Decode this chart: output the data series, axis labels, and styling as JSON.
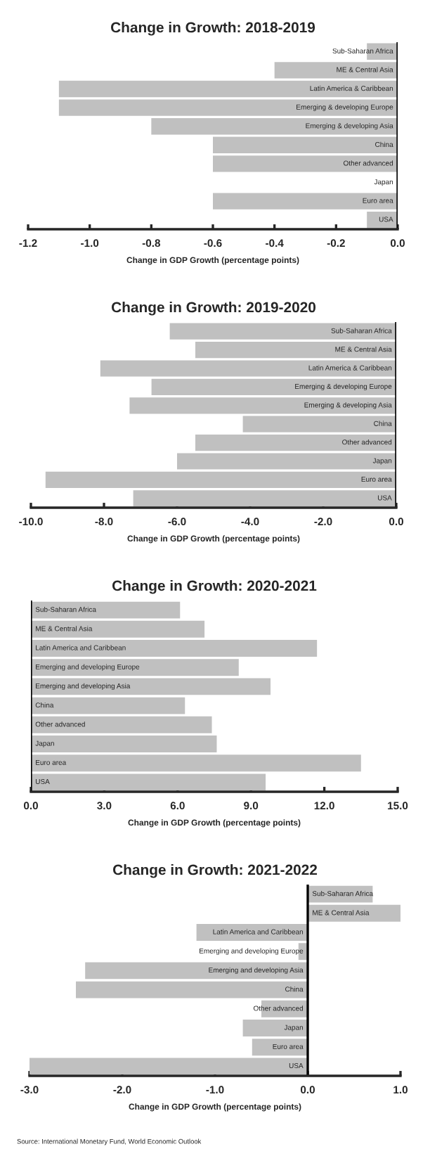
{
  "chart_data": [
    {
      "type": "bar",
      "orientation": "horizontal",
      "title": "Change in Growth: 2018-2019",
      "xlabel": "Change in GDP Growth (percentage points)",
      "categories": [
        "Sub-Saharan Africa",
        "ME & Central Asia",
        "Latin America & Caribbean",
        "Emerging & developing Europe",
        "Emerging & developing Asia",
        "China",
        "Other advanced",
        "Japan",
        "Euro area",
        "USA"
      ],
      "values": [
        -0.1,
        -0.4,
        -1.1,
        -1.1,
        -0.8,
        -0.6,
        -0.6,
        0.0,
        -0.6,
        -0.1
      ],
      "color": "#c0c0c0",
      "xlim": [
        -1.2,
        0.0
      ],
      "xticks": [
        {
          "value": -1.2,
          "label": "-1.2"
        },
        {
          "value": -1.0,
          "label": "-1.0"
        },
        {
          "value": -0.8,
          "label": "-0.8"
        },
        {
          "value": -0.6,
          "label": "-0.6"
        },
        {
          "value": -0.4,
          "label": "-0.4"
        },
        {
          "value": -0.2,
          "label": "-0.2"
        },
        {
          "value": 0.0,
          "label": "0.0"
        }
      ],
      "grid": false,
      "legend": false
    },
    {
      "type": "bar",
      "orientation": "horizontal",
      "title": "Change in Growth: 2019-2020",
      "xlabel": "Change in GDP Growth (percentage points)",
      "categories": [
        "Sub-Saharan Africa",
        "ME & Central Asia",
        "Latin America & Caribbean",
        "Emerging & developing Europe",
        "Emerging & developing Asia",
        "China",
        "Other advanced",
        "Japan",
        "Euro area",
        "USA"
      ],
      "values": [
        -6.2,
        -5.5,
        -8.1,
        -6.7,
        -7.3,
        -4.2,
        -5.5,
        -6.0,
        -9.6,
        -7.2
      ],
      "color": "#c0c0c0",
      "xlim": [
        -10.0,
        0.0
      ],
      "xticks": [
        {
          "value": -10.0,
          "label": "-10.0"
        },
        {
          "value": -8.0,
          "label": "-8.0"
        },
        {
          "value": -6.0,
          "label": "-6.0"
        },
        {
          "value": -4.0,
          "label": "-4.0"
        },
        {
          "value": -2.0,
          "label": "-2.0"
        },
        {
          "value": 0.0,
          "label": "0.0"
        }
      ],
      "grid": false,
      "legend": false
    },
    {
      "type": "bar",
      "orientation": "horizontal",
      "title": "Change in Growth: 2020-2021",
      "xlabel": "Change in GDP Growth (percentage points)",
      "categories": [
        "Sub-Saharan Africa",
        "ME & Central Asia",
        "Latin America and Caribbean",
        "Emerging and developing Europe",
        "Emerging and developing Asia",
        "China",
        "Other advanced",
        "Japan",
        "Euro area",
        "USA"
      ],
      "values": [
        6.1,
        7.1,
        11.7,
        8.5,
        9.8,
        6.3,
        7.4,
        7.6,
        13.5,
        9.6
      ],
      "color": "#c0c0c0",
      "xlim": [
        0.0,
        15.0
      ],
      "xticks": [
        {
          "value": 0.0,
          "label": "0.0"
        },
        {
          "value": 3.0,
          "label": "3.0"
        },
        {
          "value": 6.0,
          "label": "6.0"
        },
        {
          "value": 9.0,
          "label": "9.0"
        },
        {
          "value": 12.0,
          "label": "12.0"
        },
        {
          "value": 15.0,
          "label": "15.0"
        }
      ],
      "grid": false,
      "legend": false
    },
    {
      "type": "bar",
      "orientation": "horizontal",
      "title": "Change in Growth: 2021-2022",
      "xlabel": "Change in GDP Growth (percentage points)",
      "categories": [
        "Sub-Saharan Africa",
        "ME & Central Asia",
        "Latin America and Caribbean",
        "Emerging and developing Europe",
        "Emerging and developing Asia",
        "China",
        "Other advanced",
        "Japan",
        "Euro area",
        "USA"
      ],
      "values": [
        0.7,
        1.0,
        -1.2,
        -0.1,
        -2.4,
        -2.5,
        -0.5,
        -0.7,
        -0.6,
        -3.0
      ],
      "color": "#c0c0c0",
      "xlim": [
        -3.0,
        1.0
      ],
      "xticks": [
        {
          "value": -3.0,
          "label": "-3.0"
        },
        {
          "value": -2.0,
          "label": "-2.0"
        },
        {
          "value": -1.0,
          "label": "-1.0"
        },
        {
          "value": 0.0,
          "label": "0.0"
        },
        {
          "value": 1.0,
          "label": "1.0"
        }
      ],
      "grid": false,
      "legend": false,
      "annotations": [
        "Source: International Monetary Fund, World Economic Outlook"
      ]
    }
  ]
}
